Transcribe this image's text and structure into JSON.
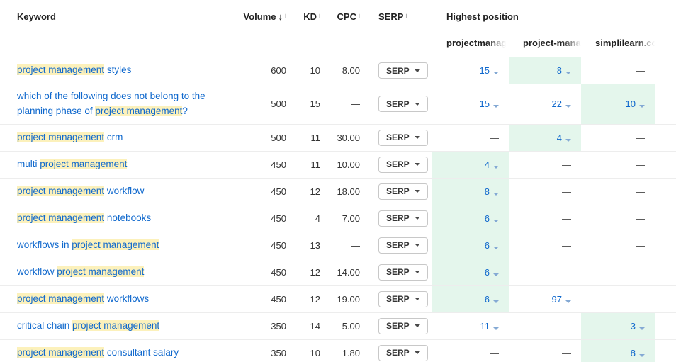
{
  "header": {
    "keyword": "Keyword",
    "volume": "Volume",
    "kd": "KD",
    "cpc": "CPC",
    "serp": "SERP",
    "highest_position": "Highest position",
    "targets": [
      "projectmanag",
      "project-manag",
      "simplilearn.co"
    ]
  },
  "table": {
    "serp_button_label": "SERP",
    "no_position_symbol": "—",
    "rows": [
      {
        "keyword_parts": [
          {
            "text": "project management",
            "hl": true
          },
          {
            "text": " styles",
            "hl": false
          }
        ],
        "volume": "600",
        "kd": "10",
        "cpc": "8.00",
        "positions": [
          {
            "value": "15",
            "green": false
          },
          {
            "value": "8",
            "green": true
          },
          {
            "value": "—",
            "green": false
          }
        ]
      },
      {
        "keyword_parts": [
          {
            "text": "which of the following does not belong to the planning phase of ",
            "hl": false
          },
          {
            "text": "project management",
            "hl": true
          },
          {
            "text": "?",
            "hl": false
          }
        ],
        "volume": "500",
        "kd": "15",
        "cpc": "—",
        "positions": [
          {
            "value": "15",
            "green": false
          },
          {
            "value": "22",
            "green": false
          },
          {
            "value": "10",
            "green": true
          }
        ]
      },
      {
        "keyword_parts": [
          {
            "text": "project management",
            "hl": true
          },
          {
            "text": " crm",
            "hl": false
          }
        ],
        "volume": "500",
        "kd": "11",
        "cpc": "30.00",
        "positions": [
          {
            "value": "—",
            "green": false
          },
          {
            "value": "4",
            "green": true
          },
          {
            "value": "—",
            "green": false
          }
        ]
      },
      {
        "keyword_parts": [
          {
            "text": "multi ",
            "hl": false
          },
          {
            "text": "project management",
            "hl": true
          }
        ],
        "volume": "450",
        "kd": "11",
        "cpc": "10.00",
        "positions": [
          {
            "value": "4",
            "green": true
          },
          {
            "value": "—",
            "green": false
          },
          {
            "value": "—",
            "green": false
          }
        ]
      },
      {
        "keyword_parts": [
          {
            "text": "project management",
            "hl": true
          },
          {
            "text": " workflow",
            "hl": false
          }
        ],
        "volume": "450",
        "kd": "12",
        "cpc": "18.00",
        "positions": [
          {
            "value": "8",
            "green": true
          },
          {
            "value": "—",
            "green": false
          },
          {
            "value": "—",
            "green": false
          }
        ]
      },
      {
        "keyword_parts": [
          {
            "text": "project management",
            "hl": true
          },
          {
            "text": " notebooks",
            "hl": false
          }
        ],
        "volume": "450",
        "kd": "4",
        "cpc": "7.00",
        "positions": [
          {
            "value": "6",
            "green": true
          },
          {
            "value": "—",
            "green": false
          },
          {
            "value": "—",
            "green": false
          }
        ]
      },
      {
        "keyword_parts": [
          {
            "text": "workflows in ",
            "hl": false
          },
          {
            "text": "project management",
            "hl": true
          }
        ],
        "volume": "450",
        "kd": "13",
        "cpc": "—",
        "positions": [
          {
            "value": "6",
            "green": true
          },
          {
            "value": "—",
            "green": false
          },
          {
            "value": "—",
            "green": false
          }
        ]
      },
      {
        "keyword_parts": [
          {
            "text": "workflow ",
            "hl": false
          },
          {
            "text": "project management",
            "hl": true
          }
        ],
        "volume": "450",
        "kd": "12",
        "cpc": "14.00",
        "positions": [
          {
            "value": "6",
            "green": true
          },
          {
            "value": "—",
            "green": false
          },
          {
            "value": "—",
            "green": false
          }
        ]
      },
      {
        "keyword_parts": [
          {
            "text": "project management",
            "hl": true
          },
          {
            "text": " workflows",
            "hl": false
          }
        ],
        "volume": "450",
        "kd": "12",
        "cpc": "19.00",
        "positions": [
          {
            "value": "6",
            "green": true
          },
          {
            "value": "97",
            "green": false
          },
          {
            "value": "—",
            "green": false
          }
        ]
      },
      {
        "keyword_parts": [
          {
            "text": "critical chain ",
            "hl": false
          },
          {
            "text": "project management",
            "hl": true
          }
        ],
        "volume": "350",
        "kd": "14",
        "cpc": "5.00",
        "positions": [
          {
            "value": "11",
            "green": false
          },
          {
            "value": "—",
            "green": false
          },
          {
            "value": "3",
            "green": true
          }
        ]
      },
      {
        "keyword_parts": [
          {
            "text": "project management",
            "hl": true
          },
          {
            "text": " consultant salary",
            "hl": false
          }
        ],
        "volume": "350",
        "kd": "10",
        "cpc": "1.80",
        "positions": [
          {
            "value": "—",
            "green": false
          },
          {
            "value": "—",
            "green": false
          },
          {
            "value": "8",
            "green": true
          }
        ]
      }
    ]
  }
}
